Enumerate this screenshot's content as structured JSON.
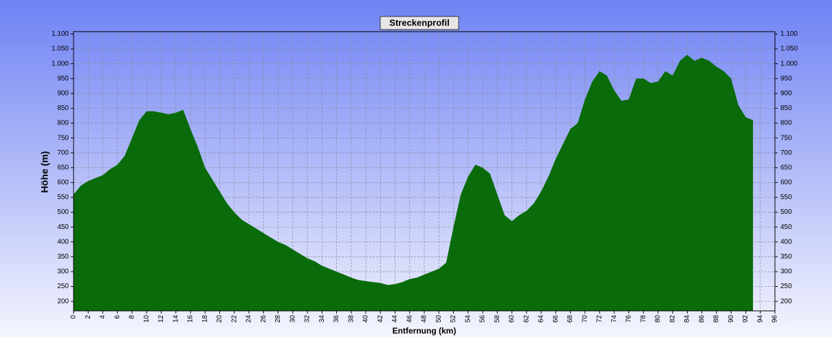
{
  "chart_data": {
    "type": "area",
    "title": "Streckenprofil",
    "y_label": "Höhe (m)",
    "x_label": "Entfernung (km)",
    "color": "#0a6b0a",
    "grid": true,
    "xlim": [
      0,
      96
    ],
    "ylim": [
      168,
      1108
    ],
    "xticks": [
      0,
      2,
      4,
      6,
      8,
      10,
      12,
      14,
      16,
      18,
      20,
      22,
      24,
      26,
      28,
      30,
      32,
      34,
      36,
      38,
      40,
      42,
      44,
      46,
      48,
      50,
      52,
      54,
      56,
      58,
      60,
      62,
      64,
      66,
      68,
      70,
      72,
      74,
      76,
      78,
      80,
      82,
      84,
      86,
      88,
      90,
      92,
      94,
      96
    ],
    "yticks": [
      200,
      250,
      300,
      350,
      400,
      450,
      500,
      550,
      600,
      650,
      700,
      750,
      800,
      850,
      900,
      950,
      {
        "value": 1000,
        "label": "1.000"
      },
      {
        "value": 1050,
        "label": "1.050"
      },
      {
        "value": 1100,
        "label": "1.100"
      }
    ],
    "x": [
      0,
      1,
      2,
      3,
      4,
      5,
      6,
      7,
      8,
      9,
      10,
      11,
      12,
      13,
      14,
      15,
      16,
      17,
      18,
      19,
      20,
      21,
      22,
      23,
      24,
      25,
      26,
      27,
      28,
      29,
      30,
      31,
      32,
      33,
      34,
      35,
      36,
      37,
      38,
      39,
      40,
      41,
      42,
      43,
      44,
      45,
      46,
      47,
      48,
      49,
      50,
      51,
      52,
      53,
      54,
      55,
      56,
      57,
      58,
      59,
      60,
      61,
      62,
      63,
      64,
      65,
      66,
      67,
      68,
      69,
      70,
      71,
      72,
      73,
      74,
      75,
      76,
      77,
      78,
      79,
      80,
      81,
      82,
      83,
      84,
      85,
      86,
      87,
      88,
      89,
      90,
      91,
      92,
      93
    ],
    "values": [
      560,
      590,
      605,
      615,
      625,
      645,
      660,
      690,
      750,
      810,
      840,
      840,
      835,
      830,
      835,
      845,
      780,
      720,
      650,
      610,
      570,
      530,
      500,
      475,
      460,
      445,
      430,
      415,
      400,
      390,
      375,
      360,
      345,
      335,
      320,
      310,
      300,
      290,
      280,
      272,
      268,
      265,
      262,
      255,
      258,
      265,
      275,
      280,
      290,
      300,
      310,
      330,
      450,
      560,
      620,
      660,
      650,
      630,
      560,
      490,
      470,
      490,
      505,
      530,
      570,
      620,
      680,
      730,
      780,
      800,
      880,
      940,
      975,
      960,
      910,
      875,
      880,
      950,
      950,
      935,
      940,
      975,
      960,
      1010,
      1030,
      1010,
      1020,
      1010,
      990,
      975,
      950,
      860,
      820,
      810
    ]
  }
}
